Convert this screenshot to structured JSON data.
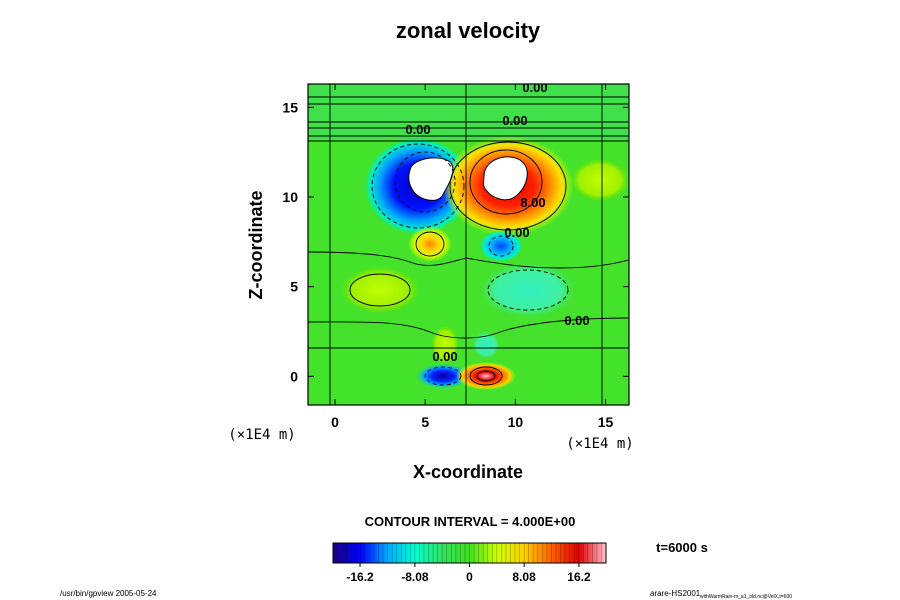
{
  "chart_data": {
    "type": "heatmap",
    "title": "zonal velocity",
    "xlabel": "X-coordinate",
    "ylabel": "Z-coordinate",
    "x_unit": "(×1E4 m)",
    "y_unit": "(×1E4 m)",
    "xlim": [
      -1.5,
      16.3
    ],
    "ylim": [
      -1.6,
      16.3
    ],
    "x_ticks": [
      0,
      5,
      10,
      15
    ],
    "y_ticks": [
      0,
      5,
      10,
      15
    ],
    "contour_interval_text": "CONTOUR INTERVAL = 4.000E+00",
    "contour_labels": [
      "0.00",
      "0.00",
      "0.00",
      "8.00",
      "0.00",
      "0.00",
      "0.00"
    ],
    "colorbar": {
      "tick_labels": [
        "-16.2",
        "-8.08",
        "0",
        "8.08",
        "16.2"
      ],
      "tick_values": [
        -16.2,
        -8.08,
        0,
        8.08,
        16.2
      ],
      "range": [
        -20.2,
        20.2
      ],
      "colors": [
        "#1a0080",
        "#0000ff",
        "#00aaff",
        "#00ffd0",
        "#30e060",
        "#40e020",
        "#ccff00",
        "#ffd000",
        "#ff6000",
        "#e00000",
        "#ffc0d0"
      ]
    },
    "features": [
      {
        "x": 4.9,
        "z": 10.9,
        "value": -20,
        "note": "negative core, values beyond color range shown white"
      },
      {
        "x": 9.3,
        "z": 10.9,
        "value": 20,
        "note": "positive core, values beyond color range shown white"
      },
      {
        "x": 5.1,
        "z": 7.4,
        "value": 8
      },
      {
        "x": 9.6,
        "z": 7.1,
        "value": -6
      },
      {
        "x": 6.0,
        "z": 0.0,
        "value": -16
      },
      {
        "x": 8.3,
        "z": 0.0,
        "value": 16
      }
    ],
    "time_text": "t=6000 s"
  },
  "footer": {
    "left": "/usr/bin/gpview 2005-05-24",
    "right_main": "arare-HS2001",
    "right_sub": "withWarmRain-m_a1_old.nc@VelX,t=600"
  }
}
